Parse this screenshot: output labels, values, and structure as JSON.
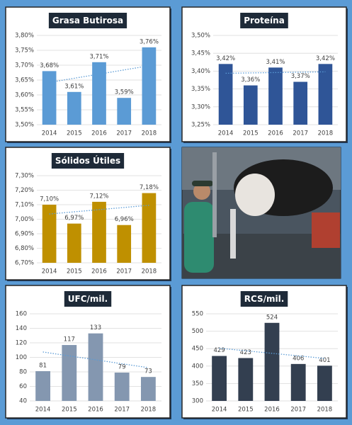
{
  "chart_data": [
    {
      "type": "bar",
      "title": "Grasa Butirosa",
      "categories": [
        "2014",
        "2015",
        "2016",
        "2017",
        "2018"
      ],
      "values": [
        3.68,
        3.61,
        3.71,
        3.59,
        3.76
      ],
      "value_labels": [
        "3,68%",
        "3,61%",
        "3,71%",
        "3,59%",
        "3,76%"
      ],
      "color": "#5b9bd5",
      "ylim": [
        3.5,
        3.8
      ],
      "yticks": [
        {
          "value": 3.5,
          "label": "3,50%"
        },
        {
          "value": 3.55,
          "label": "3,55%"
        },
        {
          "value": 3.6,
          "label": "3,60%"
        },
        {
          "value": 3.65,
          "label": "3,65%"
        },
        {
          "value": 3.7,
          "label": "3,70%"
        },
        {
          "value": 3.75,
          "label": "3,75%"
        },
        {
          "value": 3.8,
          "label": "3,80%"
        }
      ],
      "grid": true,
      "trendline": true
    },
    {
      "type": "bar",
      "title": "Proteína",
      "categories": [
        "2014",
        "2015",
        "2016",
        "2017",
        "2018"
      ],
      "values": [
        3.42,
        3.36,
        3.41,
        3.37,
        3.42
      ],
      "value_labels": [
        "3,42%",
        "3,36%",
        "3,41%",
        "3,37%",
        "3,42%"
      ],
      "color": "#2f5597",
      "ylim": [
        3.25,
        3.5
      ],
      "yticks": [
        {
          "value": 3.25,
          "label": "3,25%"
        },
        {
          "value": 3.3,
          "label": "3,30%"
        },
        {
          "value": 3.35,
          "label": "3,35%"
        },
        {
          "value": 3.4,
          "label": "3,40%"
        },
        {
          "value": 3.45,
          "label": "3,45%"
        },
        {
          "value": 3.5,
          "label": "3,50%"
        }
      ],
      "grid": true,
      "trendline": true
    },
    {
      "type": "bar",
      "title": "Sólidos Útiles",
      "categories": [
        "2014",
        "2015",
        "2016",
        "2017",
        "2018"
      ],
      "values": [
        7.1,
        6.97,
        7.12,
        6.96,
        7.18
      ],
      "value_labels": [
        "7,10%",
        "6,97%",
        "7,12%",
        "6,96%",
        "7,18%"
      ],
      "color": "#bf9000",
      "ylim": [
        6.7,
        7.3
      ],
      "yticks": [
        {
          "value": 6.7,
          "label": "6,70%"
        },
        {
          "value": 6.8,
          "label": "6,80%"
        },
        {
          "value": 6.9,
          "label": "6,90%"
        },
        {
          "value": 7.0,
          "label": "7,00%"
        },
        {
          "value": 7.1,
          "label": "7,10%"
        },
        {
          "value": 7.2,
          "label": "7,20%"
        },
        {
          "value": 7.3,
          "label": "7,30%"
        }
      ],
      "grid": true,
      "trendline": true
    },
    {
      "type": "bar",
      "title": "UFC/mil.",
      "categories": [
        "2014",
        "2015",
        "2016",
        "2017",
        "2018"
      ],
      "values": [
        81,
        117,
        133,
        79,
        73
      ],
      "color": "#8497b0",
      "ylim": [
        40,
        160
      ],
      "yticks": [
        40,
        60,
        80,
        100,
        120,
        140,
        160
      ],
      "grid": true,
      "trendline": true
    },
    {
      "type": "bar",
      "title": "RCS/mil.",
      "categories": [
        "2014",
        "2015",
        "2016",
        "2017",
        "2018"
      ],
      "values": [
        429,
        423,
        524,
        406,
        401
      ],
      "color": "#333f50",
      "ylim": [
        300,
        550
      ],
      "yticks": [
        300,
        350,
        400,
        450,
        500,
        550
      ],
      "grid": true,
      "trendline": true
    }
  ]
}
